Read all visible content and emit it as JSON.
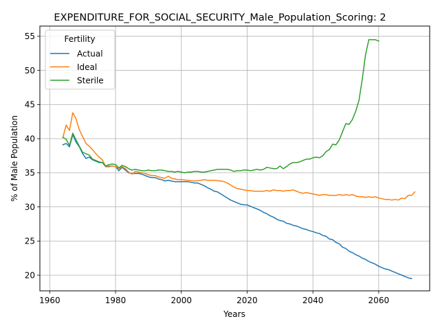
{
  "chart_data": {
    "type": "line",
    "title": "EXPENDITURE_FOR_SOCIAL_SECURITY_Male_Population_Scoring: 2",
    "xlabel": "Years",
    "ylabel": "% of Male Population",
    "xlim": [
      1957,
      2075.5
    ],
    "ylim": [
      17.7,
      56.5
    ],
    "xticks": [
      1960,
      1980,
      2000,
      2020,
      2040,
      2060
    ],
    "yticks": [
      20,
      25,
      30,
      35,
      40,
      45,
      50,
      55
    ],
    "grid": true,
    "legend": {
      "title": "Fertility",
      "position": "top-left"
    },
    "series": [
      {
        "name": "Actual",
        "color": "#1f77b4",
        "points": [
          [
            1964,
            39.1
          ],
          [
            1965,
            39.3
          ],
          [
            1966,
            38.8
          ],
          [
            1967,
            40.6
          ],
          [
            1968,
            39.5
          ],
          [
            1969,
            38.8
          ],
          [
            1970,
            37.8
          ],
          [
            1971,
            37.1
          ],
          [
            1972,
            37.3
          ],
          [
            1973,
            36.9
          ],
          [
            1974,
            36.7
          ],
          [
            1975,
            36.5
          ],
          [
            1976,
            36.5
          ],
          [
            1977,
            35.9
          ],
          [
            1978,
            35.9
          ],
          [
            1979,
            36.0
          ],
          [
            1980,
            35.9
          ],
          [
            1981,
            35.3
          ],
          [
            1982,
            35.8
          ],
          [
            1983,
            35.4
          ],
          [
            1984,
            35.0
          ],
          [
            1985,
            34.9
          ],
          [
            1986,
            34.9
          ],
          [
            1987,
            34.9
          ],
          [
            1988,
            34.8
          ],
          [
            1989,
            34.6
          ],
          [
            1990,
            34.4
          ],
          [
            1991,
            34.3
          ],
          [
            1992,
            34.3
          ],
          [
            1993,
            34.1
          ],
          [
            1994,
            34.0
          ],
          [
            1995,
            33.8
          ],
          [
            1996,
            33.9
          ],
          [
            1997,
            33.8
          ],
          [
            1998,
            33.7
          ],
          [
            2000,
            33.7
          ],
          [
            2002,
            33.7
          ],
          [
            2003,
            33.6
          ],
          [
            2004,
            33.5
          ],
          [
            2005,
            33.5
          ],
          [
            2006,
            33.3
          ],
          [
            2007,
            33.1
          ],
          [
            2008,
            32.8
          ],
          [
            2009,
            32.6
          ],
          [
            2010,
            32.3
          ],
          [
            2011,
            32.2
          ],
          [
            2012,
            31.9
          ],
          [
            2013,
            31.6
          ],
          [
            2014,
            31.3
          ],
          [
            2015,
            31.0
          ],
          [
            2016,
            30.8
          ],
          [
            2017,
            30.6
          ],
          [
            2018,
            30.4
          ],
          [
            2019,
            30.3
          ],
          [
            2020,
            30.3
          ],
          [
            2021,
            30.1
          ],
          [
            2022,
            29.9
          ],
          [
            2023,
            29.7
          ],
          [
            2024,
            29.5
          ],
          [
            2025,
            29.2
          ],
          [
            2026,
            29.0
          ],
          [
            2027,
            28.7
          ],
          [
            2028,
            28.5
          ],
          [
            2029,
            28.2
          ],
          [
            2030,
            28.0
          ],
          [
            2031,
            27.9
          ],
          [
            2032,
            27.6
          ],
          [
            2033,
            27.5
          ],
          [
            2034,
            27.3
          ],
          [
            2035,
            27.2
          ],
          [
            2036,
            27.0
          ],
          [
            2037,
            26.8
          ],
          [
            2038,
            26.7
          ],
          [
            2039,
            26.5
          ],
          [
            2040,
            26.4
          ],
          [
            2041,
            26.2
          ],
          [
            2042,
            26.1
          ],
          [
            2043,
            25.8
          ],
          [
            2044,
            25.7
          ],
          [
            2045,
            25.3
          ],
          [
            2046,
            25.2
          ],
          [
            2047,
            24.8
          ],
          [
            2048,
            24.6
          ],
          [
            2049,
            24.1
          ],
          [
            2050,
            23.9
          ],
          [
            2051,
            23.5
          ],
          [
            2052,
            23.3
          ],
          [
            2053,
            23.0
          ],
          [
            2054,
            22.8
          ],
          [
            2055,
            22.5
          ],
          [
            2056,
            22.3
          ],
          [
            2057,
            22.0
          ],
          [
            2058,
            21.8
          ],
          [
            2059,
            21.6
          ],
          [
            2060,
            21.3
          ],
          [
            2061,
            21.1
          ],
          [
            2062,
            20.9
          ],
          [
            2063,
            20.8
          ],
          [
            2064,
            20.6
          ],
          [
            2065,
            20.4
          ],
          [
            2066,
            20.2
          ],
          [
            2067,
            20.0
          ],
          [
            2068,
            19.8
          ],
          [
            2069,
            19.6
          ],
          [
            2070,
            19.5
          ]
        ]
      },
      {
        "name": "Ideal",
        "color": "#ff7f0e",
        "points": [
          [
            1964,
            40.2
          ],
          [
            1965,
            42.0
          ],
          [
            1966,
            41.2
          ],
          [
            1967,
            43.8
          ],
          [
            1968,
            42.9
          ],
          [
            1969,
            41.3
          ],
          [
            1970,
            40.3
          ],
          [
            1971,
            39.3
          ],
          [
            1972,
            38.9
          ],
          [
            1973,
            38.4
          ],
          [
            1974,
            37.8
          ],
          [
            1975,
            37.3
          ],
          [
            1976,
            36.9
          ],
          [
            1977,
            35.9
          ],
          [
            1978,
            36.0
          ],
          [
            1979,
            36.0
          ],
          [
            1980,
            35.9
          ],
          [
            1981,
            35.6
          ],
          [
            1982,
            35.9
          ],
          [
            1983,
            35.6
          ],
          [
            1984,
            35.1
          ],
          [
            1985,
            34.8
          ],
          [
            1986,
            35.2
          ],
          [
            1987,
            35.1
          ],
          [
            1988,
            35.0
          ],
          [
            1989,
            34.9
          ],
          [
            1990,
            34.7
          ],
          [
            1991,
            34.6
          ],
          [
            1992,
            34.6
          ],
          [
            1993,
            34.4
          ],
          [
            1994,
            34.3
          ],
          [
            1995,
            34.2
          ],
          [
            1996,
            34.5
          ],
          [
            1997,
            34.2
          ],
          [
            1998,
            34.1
          ],
          [
            1999,
            34.0
          ],
          [
            2000,
            34.0
          ],
          [
            2002,
            33.9
          ],
          [
            2004,
            33.8
          ],
          [
            2006,
            33.9
          ],
          [
            2007,
            34.0
          ],
          [
            2008,
            33.9
          ],
          [
            2010,
            33.9
          ],
          [
            2012,
            33.8
          ],
          [
            2013,
            33.7
          ],
          [
            2014,
            33.5
          ],
          [
            2015,
            33.2
          ],
          [
            2016,
            32.9
          ],
          [
            2017,
            32.7
          ],
          [
            2018,
            32.6
          ],
          [
            2019,
            32.5
          ],
          [
            2020,
            32.4
          ],
          [
            2021,
            32.4
          ],
          [
            2022,
            32.3
          ],
          [
            2024,
            32.3
          ],
          [
            2025,
            32.3
          ],
          [
            2026,
            32.4
          ],
          [
            2027,
            32.3
          ],
          [
            2028,
            32.5
          ],
          [
            2029,
            32.4
          ],
          [
            2030,
            32.4
          ],
          [
            2031,
            32.3
          ],
          [
            2032,
            32.4
          ],
          [
            2033,
            32.4
          ],
          [
            2034,
            32.5
          ],
          [
            2035,
            32.3
          ],
          [
            2036,
            32.1
          ],
          [
            2037,
            32.0
          ],
          [
            2038,
            32.1
          ],
          [
            2039,
            32.0
          ],
          [
            2040,
            31.9
          ],
          [
            2041,
            31.8
          ],
          [
            2042,
            31.7
          ],
          [
            2043,
            31.8
          ],
          [
            2044,
            31.8
          ],
          [
            2045,
            31.7
          ],
          [
            2046,
            31.7
          ],
          [
            2047,
            31.7
          ],
          [
            2048,
            31.8
          ],
          [
            2049,
            31.7
          ],
          [
            2050,
            31.8
          ],
          [
            2051,
            31.7
          ],
          [
            2052,
            31.8
          ],
          [
            2053,
            31.6
          ],
          [
            2054,
            31.5
          ],
          [
            2055,
            31.5
          ],
          [
            2056,
            31.4
          ],
          [
            2057,
            31.5
          ],
          [
            2058,
            31.4
          ],
          [
            2059,
            31.5
          ],
          [
            2060,
            31.3
          ],
          [
            2061,
            31.2
          ],
          [
            2062,
            31.1
          ],
          [
            2063,
            31.1
          ],
          [
            2064,
            31.0
          ],
          [
            2065,
            31.1
          ],
          [
            2066,
            31.0
          ],
          [
            2067,
            31.3
          ],
          [
            2068,
            31.2
          ],
          [
            2069,
            31.7
          ],
          [
            2070,
            31.7
          ],
          [
            2071,
            32.2
          ]
        ]
      },
      {
        "name": "Sterile",
        "color": "#2ca02c",
        "points": [
          [
            1964,
            40.2
          ],
          [
            1965,
            39.9
          ],
          [
            1966,
            39.0
          ],
          [
            1967,
            40.8
          ],
          [
            1968,
            39.8
          ],
          [
            1969,
            38.9
          ],
          [
            1970,
            38.0
          ],
          [
            1971,
            37.8
          ],
          [
            1972,
            37.6
          ],
          [
            1973,
            37.0
          ],
          [
            1974,
            36.8
          ],
          [
            1975,
            36.6
          ],
          [
            1976,
            36.5
          ],
          [
            1977,
            36.0
          ],
          [
            1978,
            36.2
          ],
          [
            1979,
            36.3
          ],
          [
            1980,
            36.2
          ],
          [
            1981,
            35.7
          ],
          [
            1982,
            36.1
          ],
          [
            1983,
            35.9
          ],
          [
            1984,
            35.6
          ],
          [
            1985,
            35.4
          ],
          [
            1986,
            35.5
          ],
          [
            1987,
            35.4
          ],
          [
            1988,
            35.3
          ],
          [
            1989,
            35.3
          ],
          [
            1990,
            35.4
          ],
          [
            1991,
            35.3
          ],
          [
            1992,
            35.3
          ],
          [
            1993,
            35.4
          ],
          [
            1994,
            35.4
          ],
          [
            1995,
            35.3
          ],
          [
            1996,
            35.2
          ],
          [
            1997,
            35.2
          ],
          [
            1998,
            35.1
          ],
          [
            1999,
            35.2
          ],
          [
            2000,
            35.1
          ],
          [
            2001,
            35.0
          ],
          [
            2002,
            35.1
          ],
          [
            2003,
            35.1
          ],
          [
            2004,
            35.2
          ],
          [
            2005,
            35.2
          ],
          [
            2006,
            35.1
          ],
          [
            2007,
            35.1
          ],
          [
            2008,
            35.2
          ],
          [
            2009,
            35.3
          ],
          [
            2010,
            35.4
          ],
          [
            2011,
            35.5
          ],
          [
            2012,
            35.5
          ],
          [
            2013,
            35.5
          ],
          [
            2014,
            35.5
          ],
          [
            2015,
            35.4
          ],
          [
            2016,
            35.2
          ],
          [
            2017,
            35.3
          ],
          [
            2018,
            35.3
          ],
          [
            2019,
            35.4
          ],
          [
            2020,
            35.4
          ],
          [
            2021,
            35.3
          ],
          [
            2022,
            35.4
          ],
          [
            2023,
            35.5
          ],
          [
            2024,
            35.4
          ],
          [
            2025,
            35.5
          ],
          [
            2026,
            35.8
          ],
          [
            2027,
            35.7
          ],
          [
            2028,
            35.6
          ],
          [
            2029,
            35.6
          ],
          [
            2030,
            36.0
          ],
          [
            2031,
            35.6
          ],
          [
            2032,
            35.9
          ],
          [
            2033,
            36.3
          ],
          [
            2034,
            36.5
          ],
          [
            2035,
            36.5
          ],
          [
            2036,
            36.6
          ],
          [
            2037,
            36.8
          ],
          [
            2038,
            37.0
          ],
          [
            2039,
            37.0
          ],
          [
            2040,
            37.2
          ],
          [
            2041,
            37.3
          ],
          [
            2042,
            37.2
          ],
          [
            2043,
            37.5
          ],
          [
            2044,
            38.1
          ],
          [
            2045,
            38.4
          ],
          [
            2046,
            39.2
          ],
          [
            2047,
            39.1
          ],
          [
            2048,
            39.8
          ],
          [
            2049,
            41.0
          ],
          [
            2050,
            42.2
          ],
          [
            2051,
            42.1
          ],
          [
            2052,
            42.8
          ],
          [
            2053,
            44.0
          ],
          [
            2054,
            45.6
          ],
          [
            2055,
            48.7
          ],
          [
            2056,
            52.3
          ],
          [
            2057,
            54.5
          ],
          [
            2058,
            54.5
          ],
          [
            2059,
            54.5
          ],
          [
            2060,
            54.3
          ]
        ]
      }
    ]
  }
}
